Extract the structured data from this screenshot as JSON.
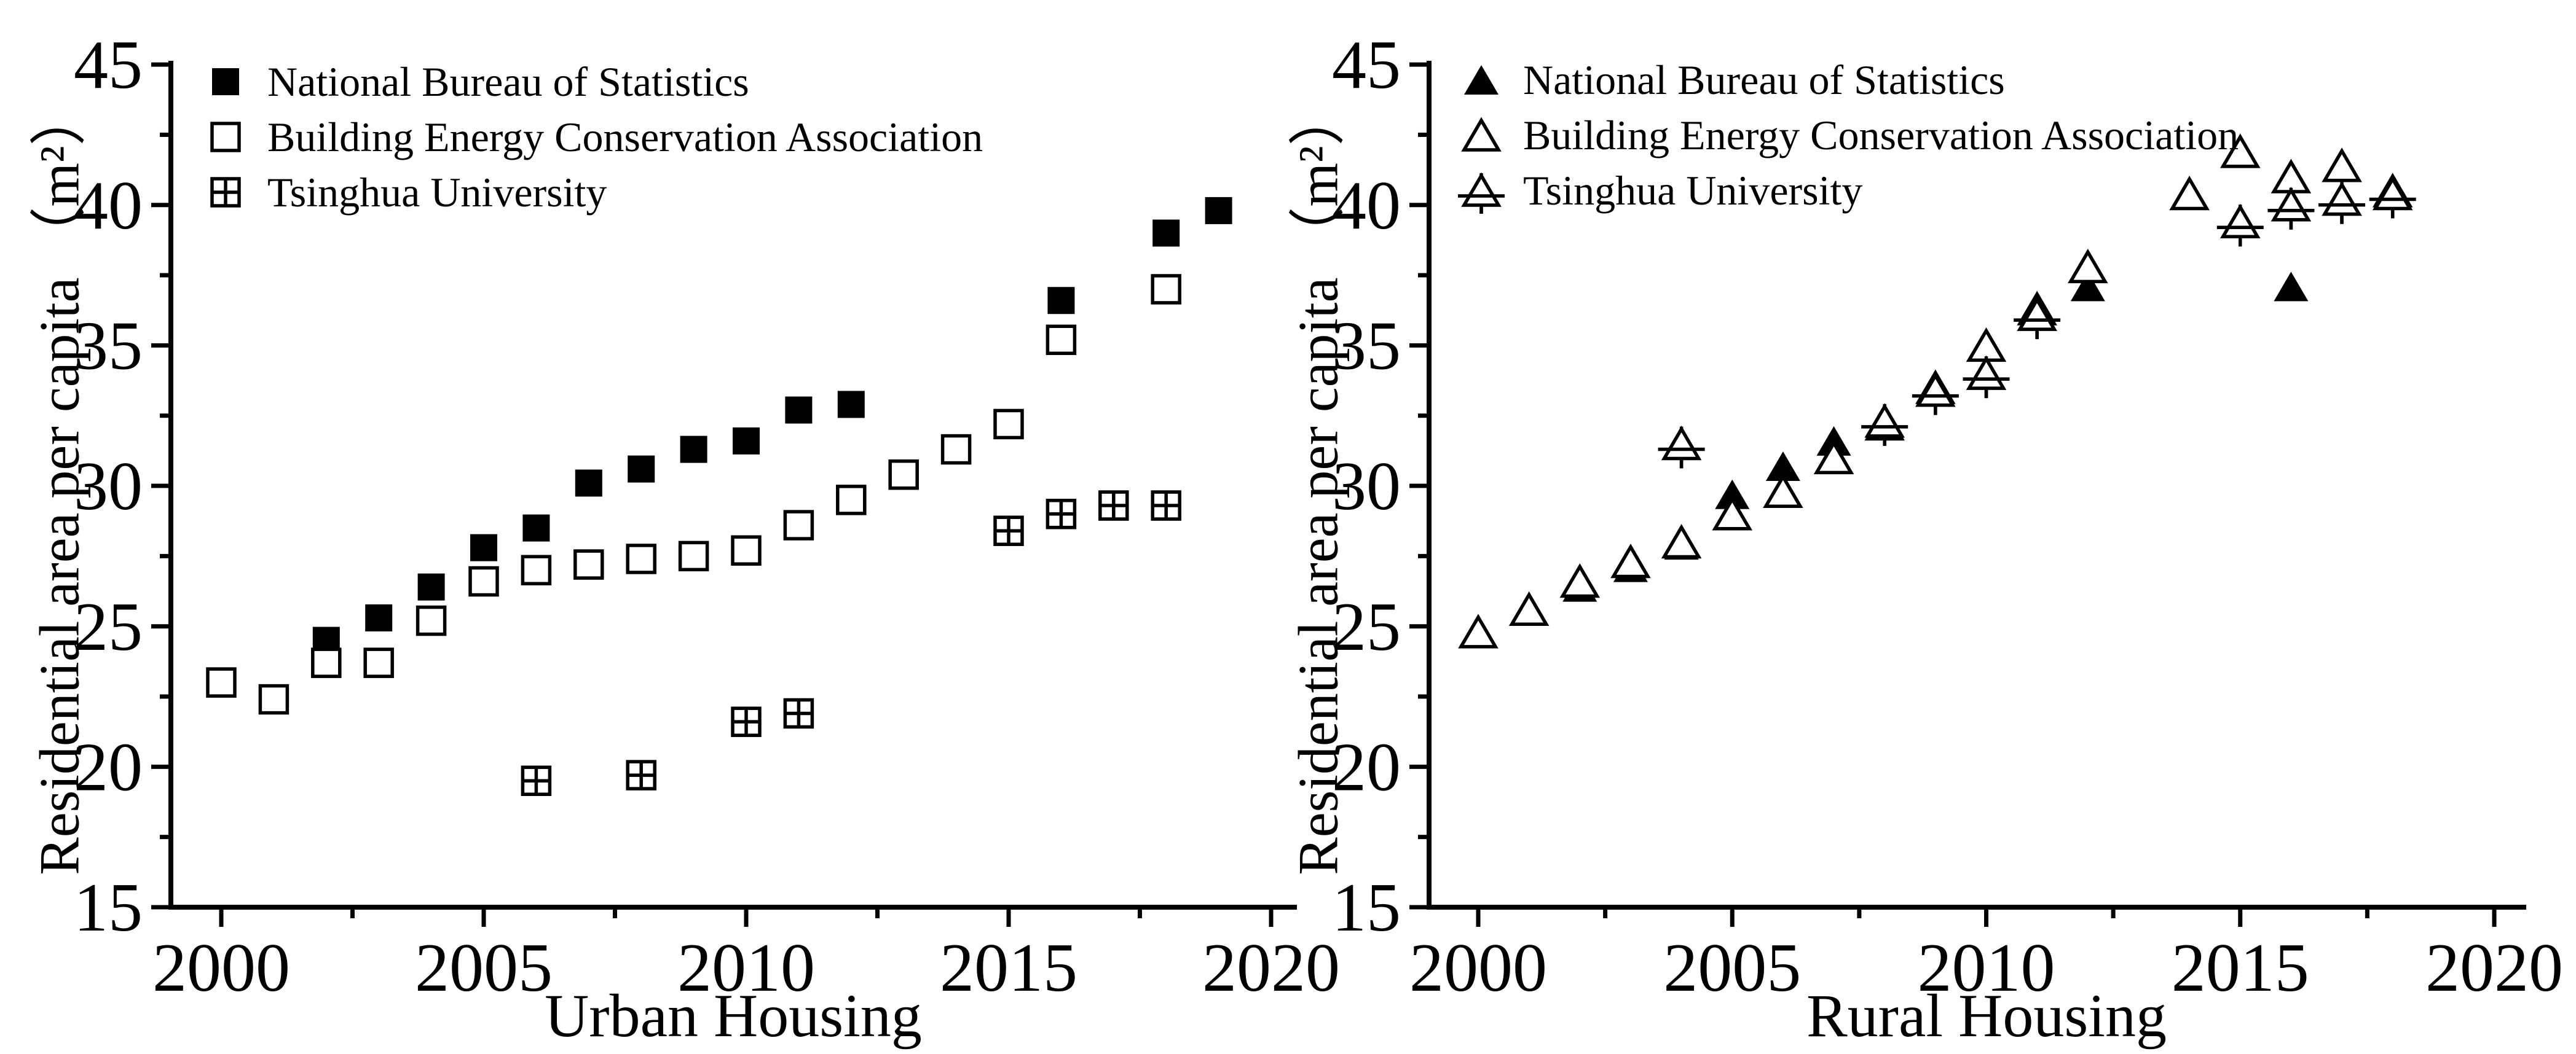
{
  "page": {
    "background_color": "#ffffff",
    "ink_color": "#000000"
  },
  "chart_data": [
    {
      "id": "urban",
      "type": "scatter",
      "title": "",
      "xlabel": "Urban Housing",
      "ylabel": "Residential area per capita （m²）",
      "x_range": [
        2000,
        2020
      ],
      "y_range": [
        15,
        45
      ],
      "x_ticks": [
        2000,
        2005,
        2010,
        2015,
        2020
      ],
      "y_ticks": [
        15,
        20,
        25,
        30,
        35,
        40,
        45
      ],
      "x_minor_step": 2.5,
      "y_minor_step": 2.5,
      "grid": false,
      "legend_position": "top-left-inside",
      "series": [
        {
          "name": "National Bureau of Statistics",
          "marker": "filled-square",
          "points": [
            [
              2002,
              24.5
            ],
            [
              2003,
              25.3
            ],
            [
              2004,
              26.4
            ],
            [
              2005,
              27.8
            ],
            [
              2006,
              28.5
            ],
            [
              2007,
              30.1
            ],
            [
              2008,
              30.6
            ],
            [
              2009,
              31.3
            ],
            [
              2010,
              31.6
            ],
            [
              2011,
              32.7
            ],
            [
              2012,
              32.9
            ],
            [
              2016,
              36.6
            ],
            [
              2018,
              39.0
            ],
            [
              2019,
              39.8
            ]
          ]
        },
        {
          "name": "Building Energy Conservation Association",
          "marker": "open-square",
          "points": [
            [
              2000,
              23.0
            ],
            [
              2001,
              22.4
            ],
            [
              2002,
              23.7
            ],
            [
              2003,
              23.7
            ],
            [
              2004,
              25.2
            ],
            [
              2005,
              26.6
            ],
            [
              2006,
              27.0
            ],
            [
              2007,
              27.2
            ],
            [
              2008,
              27.4
            ],
            [
              2009,
              27.5
            ],
            [
              2010,
              27.7
            ],
            [
              2011,
              28.6
            ],
            [
              2012,
              29.5
            ],
            [
              2013,
              30.4
            ],
            [
              2014,
              31.3
            ],
            [
              2015,
              32.2
            ],
            [
              2016,
              35.2
            ],
            [
              2018,
              37.0
            ]
          ]
        },
        {
          "name": "Tsinghua University",
          "marker": "crossed-square",
          "points": [
            [
              2006,
              19.5
            ],
            [
              2008,
              19.7
            ],
            [
              2010,
              21.6
            ],
            [
              2011,
              21.9
            ],
            [
              2015,
              28.4
            ],
            [
              2016,
              29.0
            ],
            [
              2017,
              29.3
            ],
            [
              2018,
              29.3
            ]
          ]
        }
      ]
    },
    {
      "id": "rural",
      "type": "scatter",
      "title": "",
      "xlabel": "Rural Housing",
      "ylabel": "Residential area per capita （m²）",
      "x_range": [
        2000,
        2020
      ],
      "y_range": [
        15,
        45
      ],
      "x_ticks": [
        2000,
        2005,
        2010,
        2015,
        2020
      ],
      "y_ticks": [
        15,
        20,
        25,
        30,
        35,
        40,
        45
      ],
      "x_minor_step": 2.5,
      "y_minor_step": 2.5,
      "grid": false,
      "legend_position": "top-left-inside",
      "series": [
        {
          "name": "National Bureau of Statistics",
          "marker": "filled-triangle",
          "points": [
            [
              2002,
              26.4
            ],
            [
              2003,
              27.1
            ],
            [
              2004,
              27.9
            ],
            [
              2005,
              29.7
            ],
            [
              2006,
              30.7
            ],
            [
              2007,
              31.6
            ],
            [
              2008,
              32.4
            ],
            [
              2009,
              33.6
            ],
            [
              2010,
              34.1
            ],
            [
              2011,
              36.2
            ],
            [
              2012,
              37.1
            ],
            [
              2016,
              37.1
            ]
          ]
        },
        {
          "name": "Building Energy Conservation Association",
          "marker": "open-triangle",
          "points": [
            [
              2000,
              24.8
            ],
            [
              2001,
              25.6
            ],
            [
              2002,
              26.6
            ],
            [
              2003,
              27.3
            ],
            [
              2004,
              28.0
            ],
            [
              2005,
              29.0
            ],
            [
              2006,
              29.8
            ],
            [
              2007,
              31.0
            ],
            [
              2008,
              32.2
            ],
            [
              2009,
              33.5
            ],
            [
              2010,
              35.0
            ],
            [
              2011,
              36.3
            ],
            [
              2012,
              37.8
            ],
            [
              2014,
              40.4
            ],
            [
              2015,
              41.9
            ],
            [
              2016,
              41.0
            ],
            [
              2017,
              41.4
            ],
            [
              2018,
              40.5
            ]
          ]
        },
        {
          "name": "Tsinghua University",
          "marker": "crossed-triangle",
          "points": [
            [
              2004,
              31.5
            ],
            [
              2008,
              32.3
            ],
            [
              2009,
              33.4
            ],
            [
              2010,
              34.0
            ],
            [
              2011,
              36.1
            ],
            [
              2015,
              39.4
            ],
            [
              2016,
              40.0
            ],
            [
              2017,
              40.2
            ],
            [
              2018,
              40.4
            ]
          ]
        }
      ]
    }
  ]
}
